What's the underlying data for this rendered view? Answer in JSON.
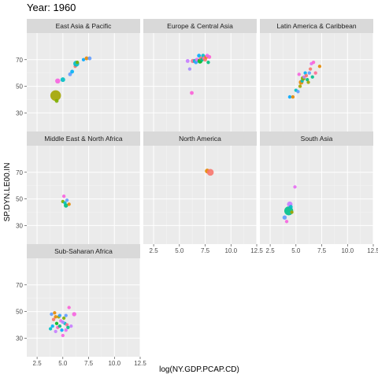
{
  "title": "Year: 1960",
  "chart_data": {
    "type": "scatter",
    "title": "Year: 1960",
    "xlabel": "log(NY.GDP.PCAP.CD)",
    "ylabel": "SP.DYN.LE00.IN",
    "xlim": [
      1.5,
      12.5
    ],
    "ylim": [
      16,
      90
    ],
    "x_ticks": [
      "2.5",
      "5.0",
      "7.5",
      "10.0",
      "12.5"
    ],
    "y_ticks": [
      "30",
      "50",
      "70"
    ],
    "x_tick_values": [
      2.5,
      5.0,
      7.5,
      10.0,
      12.5
    ],
    "y_tick_values": [
      30,
      50,
      70
    ],
    "grid": true,
    "legend": "none",
    "panels": [
      {
        "name": "East Asia & Pacific",
        "points": [
          {
            "x": 4.3,
            "y": 43,
            "size": 5,
            "color": "#a3a500"
          },
          {
            "x": 4.4,
            "y": 39,
            "size": 1.8,
            "color": "#7cae00"
          },
          {
            "x": 4.5,
            "y": 54,
            "size": 2.4,
            "color": "#f763e0"
          },
          {
            "x": 5.0,
            "y": 55,
            "size": 2.2,
            "color": "#00bfc4"
          },
          {
            "x": 5.7,
            "y": 59,
            "size": 1.8,
            "color": "#619cff"
          },
          {
            "x": 5.9,
            "y": 61,
            "size": 1.8,
            "color": "#00b0f6"
          },
          {
            "x": 6.2,
            "y": 65,
            "size": 1.6,
            "color": "#f8766d"
          },
          {
            "x": 6.3,
            "y": 67,
            "size": 2.8,
            "color": "#00bfc4"
          },
          {
            "x": 6.4,
            "y": 68,
            "size": 1.6,
            "color": "#7cae00"
          },
          {
            "x": 7.0,
            "y": 70,
            "size": 1.6,
            "color": "#00a9ff"
          },
          {
            "x": 7.3,
            "y": 71,
            "size": 1.8,
            "color": "#e58700"
          },
          {
            "x": 7.6,
            "y": 71,
            "size": 1.8,
            "color": "#619cff"
          }
        ]
      },
      {
        "name": "Europe & Central Asia",
        "points": [
          {
            "x": 5.8,
            "y": 69,
            "size": 1.8,
            "color": "#c77cff"
          },
          {
            "x": 6.0,
            "y": 63,
            "size": 1.6,
            "color": "#a58aff"
          },
          {
            "x": 6.2,
            "y": 45,
            "size": 1.8,
            "color": "#fb61d7"
          },
          {
            "x": 6.3,
            "y": 69,
            "size": 2.0,
            "color": "#ff6c91"
          },
          {
            "x": 6.5,
            "y": 69,
            "size": 2.0,
            "color": "#00bfc4"
          },
          {
            "x": 6.6,
            "y": 68,
            "size": 1.8,
            "color": "#35a2ff"
          },
          {
            "x": 6.7,
            "y": 70,
            "size": 1.8,
            "color": "#e76bf3"
          },
          {
            "x": 6.9,
            "y": 73,
            "size": 1.8,
            "color": "#00a9ff"
          },
          {
            "x": 7.0,
            "y": 69,
            "size": 2.4,
            "color": "#00b81f"
          },
          {
            "x": 7.1,
            "y": 71,
            "size": 1.8,
            "color": "#f8766d"
          },
          {
            "x": 7.2,
            "y": 70,
            "size": 1.8,
            "color": "#00c08b"
          },
          {
            "x": 7.3,
            "y": 73,
            "size": 1.8,
            "color": "#00bfc4"
          },
          {
            "x": 7.4,
            "y": 71,
            "size": 1.8,
            "color": "#ff62bc"
          },
          {
            "x": 7.5,
            "y": 70,
            "size": 1.8,
            "color": "#f8766d"
          },
          {
            "x": 7.6,
            "y": 72,
            "size": 1.8,
            "color": "#e58700"
          },
          {
            "x": 7.7,
            "y": 73,
            "size": 1.8,
            "color": "#e76bf3"
          },
          {
            "x": 7.8,
            "y": 68,
            "size": 1.6,
            "color": "#00bf7d"
          },
          {
            "x": 7.9,
            "y": 72,
            "size": 1.8,
            "color": "#fd61d1"
          }
        ]
      },
      {
        "name": "Latin America & Caribbean",
        "points": [
          {
            "x": 4.4,
            "y": 42,
            "size": 1.6,
            "color": "#00a9ff"
          },
          {
            "x": 4.7,
            "y": 42,
            "size": 1.6,
            "color": "#e58700"
          },
          {
            "x": 5.0,
            "y": 47,
            "size": 1.6,
            "color": "#00bfc4"
          },
          {
            "x": 5.2,
            "y": 46,
            "size": 1.6,
            "color": "#619cff"
          },
          {
            "x": 5.3,
            "y": 59,
            "size": 1.6,
            "color": "#f763e0"
          },
          {
            "x": 5.4,
            "y": 50,
            "size": 1.6,
            "color": "#a3a500"
          },
          {
            "x": 5.5,
            "y": 53,
            "size": 2.2,
            "color": "#e58700"
          },
          {
            "x": 5.6,
            "y": 54,
            "size": 1.6,
            "color": "#00bfc4"
          },
          {
            "x": 5.7,
            "y": 56,
            "size": 2.2,
            "color": "#7cae00"
          },
          {
            "x": 5.8,
            "y": 57,
            "size": 1.6,
            "color": "#c77cff"
          },
          {
            "x": 5.9,
            "y": 60,
            "size": 1.6,
            "color": "#00b0f6"
          },
          {
            "x": 6.0,
            "y": 58,
            "size": 1.6,
            "color": "#f8766d"
          },
          {
            "x": 6.1,
            "y": 55,
            "size": 1.6,
            "color": "#00bf7d"
          },
          {
            "x": 6.2,
            "y": 53,
            "size": 1.6,
            "color": "#a3a500"
          },
          {
            "x": 6.3,
            "y": 60,
            "size": 1.6,
            "color": "#619cff"
          },
          {
            "x": 6.4,
            "y": 63,
            "size": 1.6,
            "color": "#f8766d"
          },
          {
            "x": 6.5,
            "y": 67,
            "size": 1.6,
            "color": "#e76bf3"
          },
          {
            "x": 6.6,
            "y": 57,
            "size": 1.6,
            "color": "#00c08b"
          },
          {
            "x": 6.7,
            "y": 68,
            "size": 1.6,
            "color": "#fd61d1"
          },
          {
            "x": 6.9,
            "y": 60,
            "size": 1.6,
            "color": "#ff6c91"
          },
          {
            "x": 7.3,
            "y": 65,
            "size": 1.6,
            "color": "#e58700"
          }
        ]
      },
      {
        "name": "Middle East & North Africa",
        "points": [
          {
            "x": 5.0,
            "y": 48,
            "size": 1.6,
            "color": "#7cae00"
          },
          {
            "x": 5.1,
            "y": 52,
            "size": 1.6,
            "color": "#f763e0"
          },
          {
            "x": 5.2,
            "y": 47,
            "size": 1.6,
            "color": "#00bfc4"
          },
          {
            "x": 5.3,
            "y": 45,
            "size": 2.0,
            "color": "#00bf7d"
          },
          {
            "x": 5.4,
            "y": 49,
            "size": 1.6,
            "color": "#619cff"
          },
          {
            "x": 5.6,
            "y": 46,
            "size": 1.6,
            "color": "#e58700"
          }
        ]
      },
      {
        "name": "North America",
        "points": [
          {
            "x": 7.7,
            "y": 71,
            "size": 2.2,
            "color": "#e58700"
          },
          {
            "x": 8.0,
            "y": 70,
            "size": 3.2,
            "color": "#f8766d"
          }
        ]
      },
      {
        "name": "South Asia",
        "points": [
          {
            "x": 3.9,
            "y": 36,
            "size": 2.0,
            "color": "#619cff"
          },
          {
            "x": 4.1,
            "y": 33,
            "size": 1.6,
            "color": "#f763e0"
          },
          {
            "x": 4.3,
            "y": 41,
            "size": 4.2,
            "color": "#00c08b"
          },
          {
            "x": 4.4,
            "y": 46,
            "size": 2.6,
            "color": "#c77cff"
          },
          {
            "x": 4.5,
            "y": 44,
            "size": 1.8,
            "color": "#00bfc4"
          },
          {
            "x": 4.9,
            "y": 59,
            "size": 1.6,
            "color": "#e76bf3"
          },
          {
            "x": 4.6,
            "y": 40,
            "size": 1.6,
            "color": "#a3a500"
          }
        ]
      },
      {
        "name": "Sub-Saharan Africa",
        "points": [
          {
            "x": 3.8,
            "y": 37,
            "size": 1.6,
            "color": "#00bfc4"
          },
          {
            "x": 3.9,
            "y": 48,
            "size": 1.6,
            "color": "#619cff"
          },
          {
            "x": 4.1,
            "y": 44,
            "size": 1.6,
            "color": "#f8766d"
          },
          {
            "x": 4.2,
            "y": 49,
            "size": 1.6,
            "color": "#e58700"
          },
          {
            "x": 4.3,
            "y": 35,
            "size": 1.6,
            "color": "#c77cff"
          },
          {
            "x": 4.4,
            "y": 41,
            "size": 1.6,
            "color": "#00b81f"
          },
          {
            "x": 4.5,
            "y": 38,
            "size": 1.6,
            "color": "#ff62bc"
          },
          {
            "x": 4.6,
            "y": 46,
            "size": 1.6,
            "color": "#a3a500"
          },
          {
            "x": 4.7,
            "y": 39,
            "size": 1.6,
            "color": "#00bf7d"
          },
          {
            "x": 4.8,
            "y": 43,
            "size": 1.6,
            "color": "#e76bf3"
          },
          {
            "x": 4.9,
            "y": 36,
            "size": 1.6,
            "color": "#00a9ff"
          },
          {
            "x": 5.0,
            "y": 32,
            "size": 1.6,
            "color": "#f763e0"
          },
          {
            "x": 5.1,
            "y": 45,
            "size": 1.6,
            "color": "#7cae00"
          },
          {
            "x": 5.2,
            "y": 41,
            "size": 1.6,
            "color": "#00bfc4"
          },
          {
            "x": 5.3,
            "y": 47,
            "size": 1.6,
            "color": "#619cff"
          },
          {
            "x": 5.4,
            "y": 40,
            "size": 1.6,
            "color": "#ff6c91"
          },
          {
            "x": 5.5,
            "y": 38,
            "size": 1.6,
            "color": "#00c08b"
          },
          {
            "x": 5.6,
            "y": 53,
            "size": 1.6,
            "color": "#fb61d7"
          },
          {
            "x": 5.8,
            "y": 39,
            "size": 1.6,
            "color": "#c77cff"
          },
          {
            "x": 6.1,
            "y": 48,
            "size": 2.0,
            "color": "#f763e0"
          },
          {
            "x": 4.0,
            "y": 39,
            "size": 1.6,
            "color": "#00b0f6"
          },
          {
            "x": 4.3,
            "y": 46,
            "size": 1.6,
            "color": "#e58700"
          },
          {
            "x": 4.7,
            "y": 47,
            "size": 1.6,
            "color": "#35a2ff"
          },
          {
            "x": 5.0,
            "y": 42,
            "size": 1.6,
            "color": "#a58aff"
          },
          {
            "x": 5.3,
            "y": 36,
            "size": 1.6,
            "color": "#e76bf3"
          }
        ]
      }
    ]
  }
}
